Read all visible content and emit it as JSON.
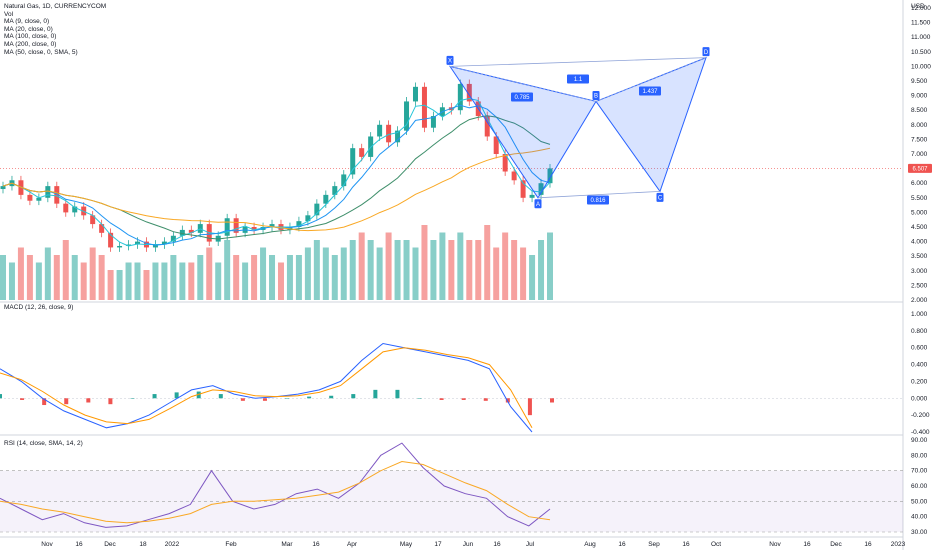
{
  "legend": {
    "title": "Natural Gas, 1D, CURRENCYCOM",
    "vol": "Vol",
    "ma1": "MA (9, close, 0)",
    "ma2": "MA (20, close, 0)",
    "ma3": "MA (100, close, 0)",
    "ma4": "MA (200, close, 0)",
    "ma5": "MA (50, close, 0, SMA, 5)"
  },
  "macd_label": "MACD (12, 26, close, 9)",
  "rsi_label": "RSI (14, close, SMA, 14, 2)",
  "currency": "USD",
  "last_price": "6.507",
  "colors": {
    "up": "#26a69a",
    "down": "#ef5350",
    "pattern": "#2962ff",
    "ma9": "#26c6da",
    "ma20": "#2196f3",
    "ma100": "#f9a825",
    "ma200": "#8fa92a",
    "ma50": "#3f8f6b",
    "macd": "#2962ff",
    "signal": "#ff9800",
    "rsi": "#7e57c2",
    "rsi_ma": "#f9a825"
  },
  "chart_data": [
    {
      "type": "candlestick",
      "title": "Natural Gas, 1D, CURRENCYCOM",
      "ylabel": "USD",
      "ylim": [
        2.0,
        12.0
      ],
      "y_ticks": [
        "12.000",
        "11.500",
        "11.000",
        "10.500",
        "10.000",
        "9.500",
        "9.000",
        "8.500",
        "8.000",
        "7.500",
        "7.000",
        "6.500",
        "6.000",
        "5.500",
        "5.000",
        "4.500",
        "4.000",
        "3.500",
        "3.000",
        "2.500",
        "2.000"
      ],
      "x_ticks": [
        "Nov",
        "16",
        "Dec",
        "18",
        "2022",
        "Feb",
        "Mar",
        "16",
        "Apr",
        "May",
        "17",
        "Jun",
        "16",
        "Jul",
        "Aug",
        "16",
        "Sep",
        "16",
        "Oct",
        "Nov",
        "16",
        "Dec",
        "16",
        "2023"
      ],
      "last_close": 6.507,
      "pattern": {
        "type": "harmonic XABCD",
        "points": {
          "X": 10.0,
          "A": 5.5,
          "B": 8.8,
          "C": 5.72,
          "D": 10.3
        },
        "ratios": {
          "XB": "0.785",
          "AC": "0.816",
          "BD": "1.437",
          "XD": "1.1"
        },
        "point_labels": [
          "X",
          "A",
          "B",
          "C",
          "D"
        ]
      },
      "series": [
        {
          "name": "Natural Gas",
          "close_path": [
            5.9,
            6.1,
            5.6,
            5.4,
            5.5,
            5.9,
            5.3,
            5.0,
            5.2,
            4.9,
            4.6,
            4.3,
            3.8,
            3.85,
            3.9,
            4.0,
            3.8,
            3.9,
            4.0,
            4.2,
            4.4,
            4.3,
            4.6,
            4.0,
            4.2,
            4.8,
            4.3,
            4.5,
            4.4,
            4.5,
            4.6,
            4.4,
            4.5,
            4.7,
            4.9,
            5.3,
            5.6,
            5.9,
            6.3,
            7.2,
            6.9,
            7.6,
            8.0,
            7.4,
            7.8,
            8.8,
            9.3,
            7.9,
            8.3,
            8.6,
            8.5,
            9.4,
            8.8,
            8.3,
            7.6,
            7.0,
            6.4,
            6.1,
            5.5,
            5.6,
            6.0,
            6.507
          ]
        }
      ]
    },
    {
      "type": "bar",
      "name": "Vol",
      "values": [
        6,
        5,
        7,
        6,
        5,
        7,
        6,
        8,
        6,
        5,
        7,
        6,
        4,
        4,
        5,
        5,
        4,
        5,
        5,
        6,
        5,
        5,
        6,
        7,
        5,
        8,
        6,
        5,
        6,
        7,
        6,
        5,
        6,
        6,
        7,
        8,
        7,
        6,
        7,
        8,
        9,
        8,
        7,
        9,
        8,
        8,
        7,
        10,
        8,
        9,
        8,
        9,
        8,
        8,
        10,
        7,
        9,
        8,
        7,
        6,
        8,
        9
      ]
    },
    {
      "type": "line",
      "title": "MACD (12, 26, close, 9)",
      "ylim": [
        -0.4,
        1.0
      ],
      "y_ticks": [
        "1.000",
        "0.800",
        "0.600",
        "0.400",
        "0.200",
        "0.000",
        "-0.200",
        "-0.400"
      ],
      "series": [
        {
          "values": [
            0.35,
            0.2,
            0.0,
            -0.15,
            -0.25,
            -0.35,
            -0.3,
            -0.2,
            -0.05,
            0.1,
            0.15,
            0.05,
            0.0,
            0.02,
            0.05,
            0.1,
            0.2,
            0.45,
            0.65,
            0.6,
            0.55,
            0.5,
            0.45,
            0.35,
            -0.1,
            -0.4
          ]
        },
        {
          "values": [
            0.3,
            0.22,
            0.08,
            -0.08,
            -0.2,
            -0.28,
            -0.3,
            -0.25,
            -0.12,
            0.02,
            0.1,
            0.08,
            0.03,
            0.02,
            0.03,
            0.07,
            0.15,
            0.35,
            0.55,
            0.6,
            0.57,
            0.52,
            0.48,
            0.4,
            0.1,
            -0.35
          ]
        }
      ],
      "histogram": [
        0.05,
        -0.02,
        -0.08,
        -0.07,
        -0.05,
        -0.07,
        0.0,
        0.05,
        0.07,
        0.08,
        0.05,
        -0.03,
        -0.03,
        0.0,
        0.02,
        0.03,
        0.05,
        0.1,
        0.1,
        0.0,
        -0.02,
        -0.02,
        -0.03,
        -0.05,
        -0.2,
        -0.05
      ]
    },
    {
      "type": "line",
      "title": "RSI (14, close, SMA, 14, 2)",
      "ylim": [
        30,
        90
      ],
      "y_ticks": [
        "90.00",
        "80.00",
        "70.00",
        "60.00",
        "50.00",
        "40.00",
        "30.00"
      ],
      "bands": [
        70,
        50,
        30
      ],
      "series": [
        {
          "values": [
            52,
            45,
            38,
            42,
            36,
            33,
            34,
            38,
            42,
            48,
            70,
            50,
            45,
            48,
            55,
            58,
            52,
            62,
            80,
            88,
            72,
            60,
            55,
            52,
            40,
            34,
            45
          ]
        },
        {
          "values": [
            50,
            48,
            45,
            43,
            40,
            37,
            36,
            37,
            39,
            42,
            48,
            50,
            50,
            51,
            52,
            54,
            56,
            62,
            70,
            76,
            74,
            68,
            62,
            57,
            48,
            40,
            38
          ]
        }
      ]
    }
  ]
}
